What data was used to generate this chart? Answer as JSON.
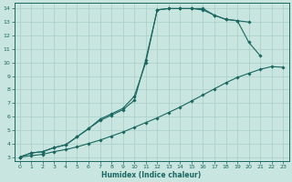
{
  "xlabel": "Humidex (Indice chaleur)",
  "bg_color": "#c8e6df",
  "grid_color": "#a8cec8",
  "line_color": "#1a6660",
  "xlim": [
    -0.5,
    23.5
  ],
  "ylim": [
    2.7,
    14.4
  ],
  "xticks": [
    0,
    1,
    2,
    3,
    4,
    5,
    6,
    7,
    8,
    9,
    10,
    11,
    12,
    13,
    14,
    15,
    16,
    17,
    18,
    19,
    20,
    21,
    22,
    23
  ],
  "yticks": [
    3,
    4,
    5,
    6,
    7,
    8,
    9,
    10,
    11,
    12,
    13,
    14
  ],
  "line1_x": [
    0,
    1,
    2,
    3,
    4,
    5,
    6,
    7,
    8,
    9,
    10,
    11,
    12,
    13,
    14,
    15,
    16,
    17,
    18,
    19,
    20
  ],
  "line1_y": [
    3.0,
    3.3,
    3.4,
    3.7,
    3.9,
    4.5,
    5.1,
    5.7,
    6.1,
    6.5,
    7.2,
    10.2,
    13.9,
    14.0,
    14.0,
    14.0,
    13.9,
    13.5,
    13.2,
    13.1,
    13.0
  ],
  "line2_x": [
    0,
    1,
    2,
    3,
    4,
    5,
    6,
    7,
    8,
    9,
    10,
    11,
    12,
    13,
    14,
    15,
    16,
    17,
    18,
    19,
    20,
    21
  ],
  "line2_y": [
    3.0,
    3.3,
    3.4,
    3.7,
    3.9,
    4.5,
    5.1,
    5.8,
    6.2,
    6.6,
    7.5,
    10.0,
    13.9,
    14.0,
    14.0,
    14.0,
    14.0,
    13.5,
    13.2,
    13.1,
    11.5,
    10.5
  ],
  "line3_x": [
    0,
    1,
    2,
    3,
    4,
    5,
    6,
    7,
    8,
    9,
    10,
    11,
    12,
    13,
    14,
    15,
    16,
    17,
    18,
    19,
    20,
    21,
    22,
    23
  ],
  "line3_y": [
    3.0,
    3.1,
    3.2,
    3.4,
    3.55,
    3.75,
    4.0,
    4.25,
    4.55,
    4.85,
    5.2,
    5.55,
    5.9,
    6.3,
    6.7,
    7.15,
    7.6,
    8.05,
    8.5,
    8.9,
    9.2,
    9.5,
    9.7,
    9.65
  ]
}
